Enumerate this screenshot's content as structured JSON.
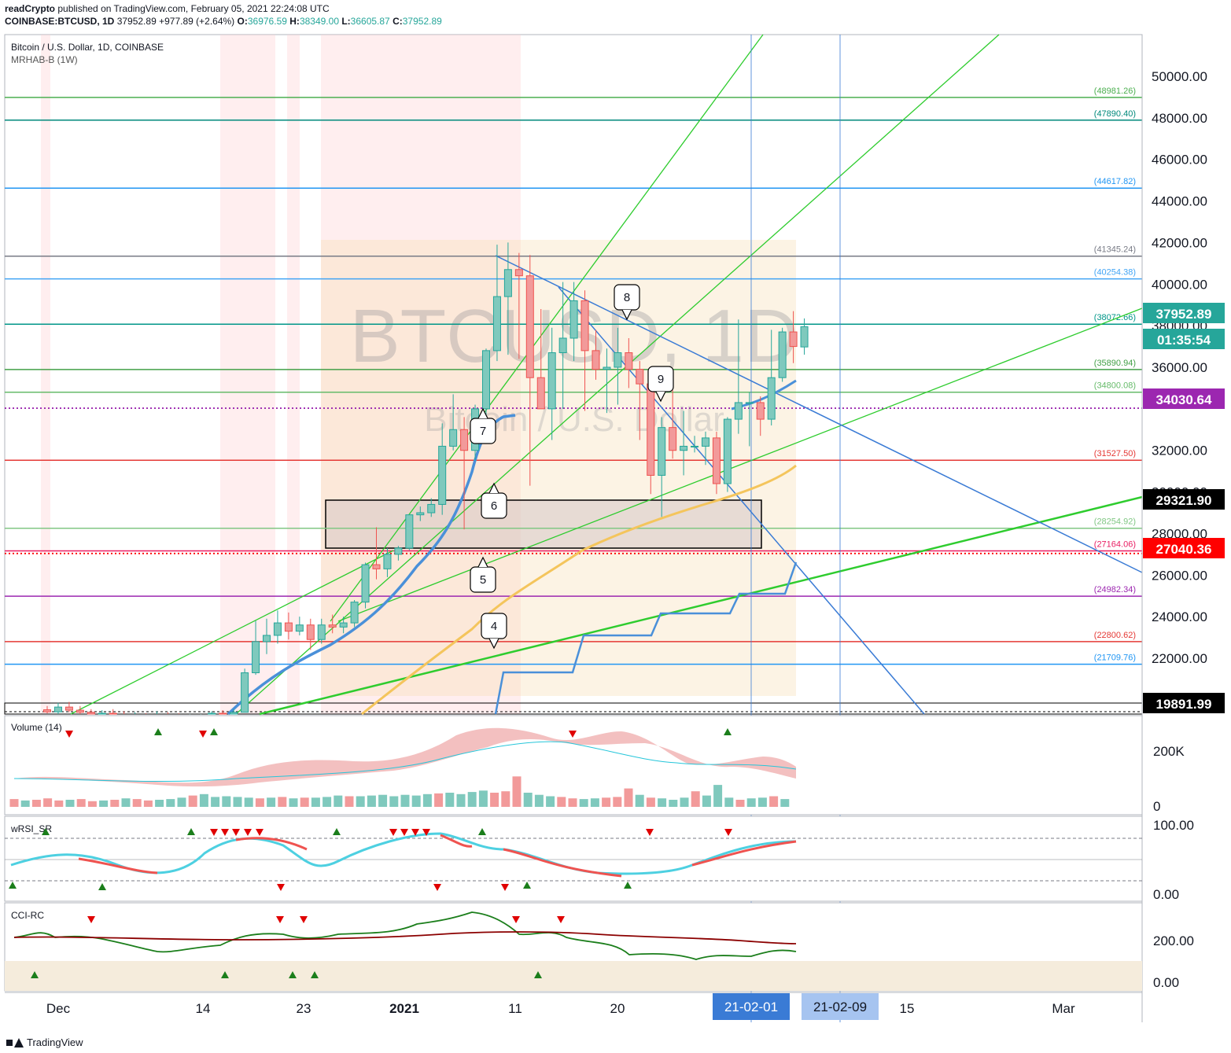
{
  "header": {
    "publisher": "readCrypto",
    "published_text": "published on TradingView.com, February 05, 2021 22:24:08 UTC",
    "symbol": "COINBASE:BTCUSD, 1D",
    "last": "37952.89",
    "change": "+977.89 (+2.64%)",
    "o_label": "O:",
    "o": "36976.59",
    "h_label": "H:",
    "h": "38349.00",
    "l_label": "L:",
    "l": "36605.87",
    "c_label": "C:",
    "c": "37952.89"
  },
  "legend": {
    "title": "Bitcoin / U.S. Dollar, 1D, COINBASE",
    "indicator": "MRHAB-B (1W)",
    "watermark_big": "BTCUSD, 1D",
    "watermark_small": "Bitcoin / U.S. Dollar"
  },
  "panes": {
    "volume": "Volume (14)",
    "wrsi": "wRSI_SR",
    "cci": "CCI-RC"
  },
  "price_axis": {
    "ticks": [
      "50000.00",
      "48000.00",
      "46000.00",
      "44000.00",
      "42000.00",
      "40000.00",
      "38000.00",
      "36000.00",
      "32000.00",
      "30000.00",
      "28000.00",
      "26000.00",
      "24000.00",
      "22000.00"
    ],
    "badges": [
      {
        "value": "37952.89",
        "bg": "#26a69a",
        "fg": "#ffffff"
      },
      {
        "value": "01:35:54",
        "bg": "#26a69a",
        "fg": "#ffffff"
      },
      {
        "value": "34030.64",
        "bg": "#9c27b0",
        "fg": "#ffffff"
      },
      {
        "value": "29321.90",
        "bg": "#000000",
        "fg": "#ffffff"
      },
      {
        "value": "27040.36",
        "bg": "#ff0000",
        "fg": "#ffffff"
      },
      {
        "value": "19891.99",
        "bg": "#000000",
        "fg": "#ffffff"
      }
    ]
  },
  "levels": [
    {
      "value": 48981.26,
      "label": "(48981.26)",
      "color": "#4caf50"
    },
    {
      "value": 47890.4,
      "label": "(47890.40)",
      "color": "#00897b"
    },
    {
      "value": 44617.82,
      "label": "(44617.82)",
      "color": "#2196f3"
    },
    {
      "value": 41345.24,
      "label": "(41345.24)",
      "color": "#787b86"
    },
    {
      "value": 40254.38,
      "label": "(40254.38)",
      "color": "#42a5f5"
    },
    {
      "value": 38072.66,
      "label": "(38072.66)",
      "color": "#009688"
    },
    {
      "value": 35890.94,
      "label": "(35890.94)",
      "color": "#43a047"
    },
    {
      "value": 34800.08,
      "label": "(34800.08)",
      "color": "#66bb6a"
    },
    {
      "value": 31527.5,
      "label": "(31527.50)",
      "color": "#e53935"
    },
    {
      "value": 28254.92,
      "label": "(28254.92)",
      "color": "#81c784"
    },
    {
      "value": 27164.06,
      "label": "(27164.06)",
      "color": "#e91e63"
    },
    {
      "value": 24982.34,
      "label": "(24982.34)",
      "color": "#9c27b0"
    },
    {
      "value": 22800.62,
      "label": "(22800.62)",
      "color": "#e53935"
    },
    {
      "value": 21709.76,
      "label": "(21709.76)",
      "color": "#2196f3"
    }
  ],
  "volume_axis": [
    "200K",
    "0"
  ],
  "wrsi_axis": [
    "100.00",
    "0.00"
  ],
  "cci_axis": [
    "200.00",
    "0.00"
  ],
  "time_axis": {
    "labels": [
      "Dec",
      "14",
      "23",
      "2021",
      "11",
      "20",
      "15",
      "Mar"
    ],
    "badges": [
      "21-02-01",
      "21-02-09"
    ]
  },
  "markers": [
    "8",
    "9",
    "7",
    "6",
    "5",
    "4"
  ],
  "chart_data": {
    "type": "candlestick",
    "title": "Bitcoin / U.S. Dollar, 1D, COINBASE",
    "ylim": [
      19600,
      50900
    ],
    "candles": [
      [
        19520,
        19420,
        19700,
        19350
      ],
      [
        19420,
        19650,
        19850,
        19300
      ],
      [
        19650,
        19500,
        19900,
        19400
      ],
      [
        19500,
        19400,
        19700,
        19250
      ],
      [
        19400,
        19300,
        19550,
        19100
      ],
      [
        19300,
        19350,
        19500,
        19150
      ],
      [
        19350,
        19250,
        19550,
        19050
      ],
      [
        19250,
        19150,
        19450,
        19000
      ],
      [
        19150,
        19250,
        19400,
        19000
      ],
      [
        19250,
        19200,
        19350,
        19050
      ],
      [
        19200,
        19300,
        19450,
        19100
      ],
      [
        19300,
        19200,
        19400,
        19050
      ],
      [
        19200,
        19100,
        19350,
        18950
      ],
      [
        19100,
        19150,
        19300,
        18900
      ],
      [
        19150,
        19200,
        19300,
        19000
      ],
      [
        19200,
        19350,
        19450,
        19100
      ],
      [
        19350,
        19300,
        19500,
        19200
      ],
      [
        19300,
        19400,
        19550,
        19200
      ],
      [
        19400,
        21300,
        21500,
        19400
      ],
      [
        21300,
        22800,
        23800,
        21200
      ],
      [
        22800,
        23100,
        23900,
        22200
      ],
      [
        23100,
        23700,
        24300,
        22700
      ],
      [
        23700,
        23300,
        24200,
        22900
      ],
      [
        23300,
        23600,
        24000,
        23100
      ],
      [
        23600,
        22900,
        23900,
        22400
      ],
      [
        22900,
        23600,
        23900,
        22700
      ],
      [
        23600,
        23500,
        24100,
        23200
      ],
      [
        23500,
        23700,
        24000,
        23200
      ],
      [
        23700,
        24700,
        24800,
        23500
      ],
      [
        24700,
        26500,
        26600,
        24400
      ],
      [
        26500,
        26300,
        28300,
        25800
      ],
      [
        26300,
        27000,
        27300,
        25900
      ],
      [
        27000,
        27300,
        27400,
        26700
      ],
      [
        27300,
        28900,
        28900,
        27200
      ],
      [
        28900,
        29000,
        29300,
        28600
      ],
      [
        29000,
        29400,
        29700,
        28800
      ],
      [
        29400,
        32200,
        33300,
        28900
      ],
      [
        32200,
        33000,
        34700,
        32000
      ],
      [
        33000,
        32000,
        33600,
        28200
      ],
      [
        32000,
        34000,
        34200,
        31500
      ],
      [
        34000,
        36800,
        36900,
        33700
      ],
      [
        36800,
        39400,
        41900,
        36300
      ],
      [
        39400,
        40700,
        42000,
        36600
      ],
      [
        40700,
        40400,
        41500,
        36400
      ],
      [
        40400,
        35500,
        41400,
        30300
      ],
      [
        35500,
        34000,
        38800,
        34000
      ],
      [
        34000,
        36700,
        37900,
        32500
      ],
      [
        36700,
        37400,
        40100,
        34000
      ],
      [
        37400,
        39200,
        40100,
        36300
      ],
      [
        39200,
        36800,
        39700,
        33900
      ],
      [
        36800,
        35900,
        37800,
        35400
      ],
      [
        35900,
        36000,
        36900,
        33800
      ],
      [
        36000,
        36700,
        37900,
        34200
      ],
      [
        36700,
        35900,
        37400,
        35000
      ],
      [
        35900,
        35200,
        36300,
        32500
      ],
      [
        35200,
        30800,
        35800,
        29900
      ],
      [
        30800,
        33100,
        33600,
        28800
      ],
      [
        33100,
        32000,
        34900,
        31600
      ],
      [
        32000,
        32200,
        33900,
        30800
      ],
      [
        32200,
        32200,
        32700,
        31900
      ],
      [
        32200,
        32600,
        32900,
        31300
      ],
      [
        32600,
        30400,
        32900,
        29900
      ],
      [
        30400,
        33500,
        33600,
        30000
      ],
      [
        33500,
        34300,
        38300,
        32800
      ],
      [
        34300,
        34300,
        34800,
        32200
      ],
      [
        34300,
        33500,
        34600,
        32700
      ],
      [
        33500,
        35500,
        37800,
        33200
      ],
      [
        35500,
        37700,
        37900,
        35300
      ],
      [
        37700,
        37000,
        38700,
        36200
      ],
      [
        36976.59,
        37952.89,
        38349.0,
        36605.87
      ]
    ],
    "volume": [
      1.1,
      0.9,
      1.0,
      1.2,
      0.9,
      1.0,
      1.1,
      0.8,
      0.9,
      1.0,
      1.2,
      1.1,
      0.9,
      1.0,
      1.1,
      1.3,
      1.6,
      1.8,
      1.4,
      1.5,
      1.4,
      1.3,
      1.2,
      1.3,
      1.4,
      1.2,
      1.3,
      1.3,
      1.4,
      1.6,
      1.5,
      1.5,
      1.6,
      1.7,
      1.5,
      1.7,
      1.6,
      1.8,
      1.9,
      2.0,
      1.8,
      2.1,
      2.3,
      2.0,
      2.2,
      4.3,
      2.0,
      1.7,
      1.5,
      1.4,
      1.2,
      1.1,
      1.2,
      1.3,
      1.4,
      2.6,
      1.7,
      1.3,
      1.2,
      1.0,
      1.3,
      2.2,
      1.6,
      3.1,
      1.3,
      1.0,
      1.2,
      1.3,
      1.5,
      1.1
    ],
    "resistance_levels": [
      48981.26,
      47890.4,
      44617.82,
      41345.24,
      40254.38,
      38072.66,
      35890.94,
      34800.08,
      31527.5,
      28254.92,
      27164.06,
      24982.34,
      22800.62,
      21709.76
    ]
  }
}
